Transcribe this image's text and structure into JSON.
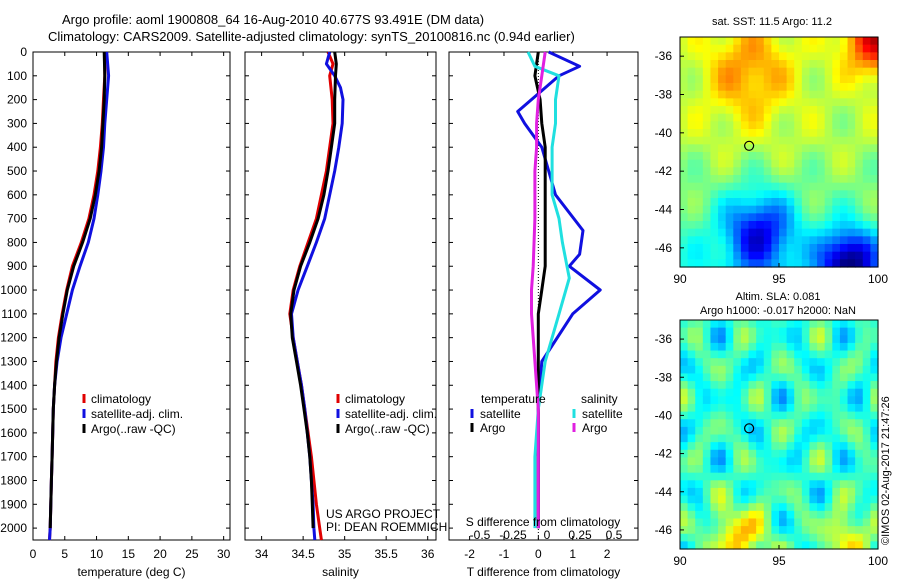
{
  "header": {
    "line1": "Argo profile: aoml 1900808_64 16-Aug-2010 40.677S 93.491E (DM data)",
    "line2": "Climatology: CARS2009. Satellite-adjusted climatology: synTS_20100816.nc (0.94d earlier)"
  },
  "credit": "©IMOS 02-Aug-2017 21:47:26",
  "colors": {
    "climatology": "#e00000",
    "satellite": "#1010e0",
    "argo": "#000000",
    "cyan": "#20e0e0",
    "magenta": "#e020e0"
  },
  "chart_data": [
    {
      "type": "line",
      "xlabel": "temperature (deg C)",
      "xlim": [
        0,
        31
      ],
      "xticks": [
        "0",
        "5",
        "10",
        "15",
        "20",
        "25",
        "30"
      ],
      "ylim": [
        2050,
        0
      ],
      "yticks": [
        "0",
        "100",
        "200",
        "300",
        "400",
        "500",
        "600",
        "700",
        "800",
        "900",
        "1000",
        "1100",
        "1200",
        "1300",
        "1400",
        "1500",
        "1600",
        "1700",
        "1800",
        "1900",
        "2000"
      ],
      "legend": [
        "climatology",
        "satellite-adj. clim.",
        "Argo(..raw -QC)"
      ],
      "series": [
        {
          "name": "climatology",
          "color": "#e00000",
          "points": [
            [
              11.3,
              0
            ],
            [
              11.3,
              100
            ],
            [
              11.1,
              200
            ],
            [
              10.9,
              300
            ],
            [
              10.6,
              400
            ],
            [
              10.2,
              500
            ],
            [
              9.6,
              600
            ],
            [
              8.8,
              700
            ],
            [
              7.6,
              800
            ],
            [
              6.2,
              900
            ],
            [
              5.3,
              1000
            ],
            [
              4.6,
              1100
            ],
            [
              4.0,
              1200
            ],
            [
              3.6,
              1300
            ],
            [
              3.4,
              1400
            ],
            [
              3.2,
              1500
            ],
            [
              3.1,
              1600
            ],
            [
              3.0,
              1700
            ],
            [
              2.9,
              1800
            ],
            [
              2.8,
              1900
            ],
            [
              2.7,
              2000
            ],
            [
              2.6,
              2050
            ]
          ]
        },
        {
          "name": "satellite-adj. clim.",
          "color": "#1010e0",
          "points": [
            [
              11.6,
              0
            ],
            [
              11.9,
              100
            ],
            [
              11.6,
              200
            ],
            [
              11.3,
              300
            ],
            [
              11.1,
              400
            ],
            [
              10.7,
              500
            ],
            [
              10.2,
              600
            ],
            [
              9.6,
              700
            ],
            [
              8.7,
              800
            ],
            [
              7.4,
              900
            ],
            [
              6.2,
              1000
            ],
            [
              5.3,
              1100
            ],
            [
              4.4,
              1200
            ],
            [
              3.8,
              1300
            ],
            [
              3.4,
              1400
            ],
            [
              3.2,
              1500
            ],
            [
              3.1,
              1600
            ],
            [
              3.0,
              1700
            ],
            [
              2.9,
              1800
            ],
            [
              2.8,
              1900
            ],
            [
              2.7,
              2000
            ],
            [
              2.6,
              2050
            ]
          ]
        },
        {
          "name": "Argo(..raw -QC)",
          "color": "#000000",
          "points": [
            [
              11.2,
              0
            ],
            [
              11.3,
              100
            ],
            [
              11.2,
              200
            ],
            [
              11.0,
              300
            ],
            [
              10.8,
              400
            ],
            [
              10.4,
              500
            ],
            [
              9.8,
              600
            ],
            [
              9.0,
              700
            ],
            [
              7.8,
              800
            ],
            [
              6.4,
              900
            ],
            [
              5.4,
              1000
            ],
            [
              4.7,
              1100
            ],
            [
              4.1,
              1200
            ],
            [
              3.7,
              1300
            ],
            [
              3.4,
              1400
            ],
            [
              3.2,
              1500
            ],
            [
              3.1,
              1600
            ],
            [
              3.0,
              1700
            ],
            [
              2.9,
              1800
            ],
            [
              2.8,
              1900
            ],
            [
              2.7,
              2000
            ]
          ]
        }
      ]
    },
    {
      "type": "line",
      "xlabel": "salinity",
      "xlim": [
        33.8,
        36.1
      ],
      "xticks": [
        "34",
        "34.5",
        "35",
        "35.5",
        "36"
      ],
      "ylim": [
        2050,
        0
      ],
      "legend": [
        "climatology",
        "satellite-adj. clim.",
        "Argo(..raw -QC)"
      ],
      "annotation": [
        "US ARGO PROJECT",
        "PI: DEAN ROEMMICH"
      ],
      "series": [
        {
          "name": "climatology",
          "color": "#e00000",
          "points": [
            [
              34.8,
              0
            ],
            [
              34.86,
              50
            ],
            [
              34.82,
              100
            ],
            [
              34.85,
              200
            ],
            [
              34.86,
              300
            ],
            [
              34.82,
              400
            ],
            [
              34.78,
              500
            ],
            [
              34.72,
              600
            ],
            [
              34.66,
              700
            ],
            [
              34.56,
              800
            ],
            [
              34.46,
              900
            ],
            [
              34.38,
              1000
            ],
            [
              34.34,
              1100
            ],
            [
              34.38,
              1200
            ],
            [
              34.43,
              1300
            ],
            [
              34.48,
              1400
            ],
            [
              34.52,
              1500
            ],
            [
              34.56,
              1600
            ],
            [
              34.6,
              1700
            ],
            [
              34.63,
              1800
            ],
            [
              34.66,
              1900
            ],
            [
              34.7,
              2000
            ],
            [
              34.72,
              2050
            ]
          ]
        },
        {
          "name": "satellite-adj. clim.",
          "color": "#1010e0",
          "points": [
            [
              34.82,
              0
            ],
            [
              34.78,
              50
            ],
            [
              34.88,
              100
            ],
            [
              34.95,
              150
            ],
            [
              34.98,
              200
            ],
            [
              34.97,
              300
            ],
            [
              34.93,
              400
            ],
            [
              34.88,
              500
            ],
            [
              34.82,
              600
            ],
            [
              34.76,
              700
            ],
            [
              34.66,
              800
            ],
            [
              34.55,
              900
            ],
            [
              34.44,
              1000
            ],
            [
              34.36,
              1100
            ],
            [
              34.38,
              1200
            ],
            [
              34.43,
              1300
            ],
            [
              34.48,
              1400
            ],
            [
              34.52,
              1500
            ],
            [
              34.55,
              1600
            ],
            [
              34.58,
              1700
            ],
            [
              34.6,
              1800
            ],
            [
              34.62,
              1900
            ],
            [
              34.63,
              2000
            ],
            [
              34.64,
              2050
            ]
          ]
        },
        {
          "name": "Argo(..raw -QC)",
          "color": "#000000",
          "points": [
            [
              34.88,
              0
            ],
            [
              34.9,
              50
            ],
            [
              34.89,
              100
            ],
            [
              34.88,
              200
            ],
            [
              34.88,
              300
            ],
            [
              34.84,
              400
            ],
            [
              34.8,
              500
            ],
            [
              34.75,
              600
            ],
            [
              34.68,
              700
            ],
            [
              34.58,
              800
            ],
            [
              34.47,
              900
            ],
            [
              34.39,
              1000
            ],
            [
              34.35,
              1100
            ],
            [
              34.37,
              1200
            ],
            [
              34.42,
              1300
            ],
            [
              34.47,
              1400
            ],
            [
              34.51,
              1500
            ],
            [
              34.55,
              1600
            ],
            [
              34.58,
              1700
            ],
            [
              34.6,
              1800
            ],
            [
              34.61,
              1900
            ],
            [
              34.62,
              2000
            ]
          ]
        }
      ]
    },
    {
      "type": "line",
      "xlabel": "T difference from climatology",
      "xlabel_top": "S difference from climatology",
      "xlim": [
        -2.6,
        2.9
      ],
      "xticks": [
        "-2",
        "-1",
        "0",
        "1",
        "2"
      ],
      "xticks_top": [
        "-0.5",
        "-0.25",
        "0",
        "0.25",
        "0.5"
      ],
      "ylim": [
        2050,
        0
      ],
      "legend_headers": [
        "temperature",
        "salinity"
      ],
      "legend": [
        "satellite",
        "Argo",
        "satellite",
        "Argo"
      ],
      "series": [
        {
          "name": "satellite",
          "color": "#1010e0",
          "points": [
            [
              0.3,
              0
            ],
            [
              1.2,
              60
            ],
            [
              0.6,
              100
            ],
            [
              0.2,
              150
            ],
            [
              -0.6,
              250
            ],
            [
              -0.4,
              300
            ],
            [
              0.1,
              400
            ],
            [
              0.3,
              500
            ],
            [
              0.5,
              600
            ],
            [
              1.3,
              750
            ],
            [
              1.2,
              850
            ],
            [
              0.9,
              900
            ],
            [
              1.8,
              1000
            ],
            [
              1.0,
              1100
            ],
            [
              0.1,
              1300
            ],
            [
              0.0,
              1500
            ],
            [
              0.0,
              1700
            ],
            [
              0.0,
              2000
            ]
          ]
        },
        {
          "name": "Argo",
          "color": "#000000",
          "points": [
            [
              0.0,
              0
            ],
            [
              -0.1,
              100
            ],
            [
              0.05,
              200
            ],
            [
              0.1,
              300
            ],
            [
              0.2,
              400
            ],
            [
              0.2,
              500
            ],
            [
              0.2,
              600
            ],
            [
              0.2,
              700
            ],
            [
              0.2,
              800
            ],
            [
              0.2,
              900
            ],
            [
              0.1,
              1000
            ],
            [
              0.0,
              1100
            ],
            [
              0.0,
              1300
            ],
            [
              0.0,
              1500
            ],
            [
              0.0,
              1800
            ],
            [
              0.0,
              2000
            ]
          ]
        },
        {
          "name": "satellite",
          "color": "#20e0e0",
          "points": [
            [
              -0.3,
              0
            ],
            [
              -0.1,
              60
            ],
            [
              0.6,
              100
            ],
            [
              0.5,
              200
            ],
            [
              0.5,
              300
            ],
            [
              0.4,
              400
            ],
            [
              0.4,
              500
            ],
            [
              0.4,
              600
            ],
            [
              0.6,
              700
            ],
            [
              0.7,
              800
            ],
            [
              0.9,
              950
            ],
            [
              0.6,
              1100
            ],
            [
              0.2,
              1300
            ],
            [
              0.0,
              1500
            ],
            [
              -0.1,
              1700
            ],
            [
              -0.1,
              2000
            ]
          ]
        },
        {
          "name": "Argo",
          "color": "#e020e0",
          "points": [
            [
              0.2,
              0
            ],
            [
              0.1,
              100
            ],
            [
              0.0,
              200
            ],
            [
              -0.05,
              300
            ],
            [
              -0.05,
              400
            ],
            [
              -0.1,
              500
            ],
            [
              -0.1,
              700
            ],
            [
              -0.15,
              900
            ],
            [
              -0.2,
              1000
            ],
            [
              -0.2,
              1100
            ],
            [
              -0.1,
              1300
            ],
            [
              0.0,
              1500
            ],
            [
              0.0,
              1700
            ],
            [
              0.0,
              2000
            ]
          ]
        }
      ]
    },
    {
      "type": "heatmap",
      "title": "sat. SST: 11.5  Argo: 11.2",
      "xlim": [
        90,
        100
      ],
      "ylim": [
        -47,
        -35
      ],
      "xticks": [
        "90",
        "95",
        "100"
      ],
      "yticks": [
        "-36",
        "-38",
        "-40",
        "-42",
        "-44",
        "-46"
      ],
      "marker": [
        93.491,
        -40.677
      ],
      "data_extent": [
        90,
        100
      ]
    },
    {
      "type": "heatmap",
      "title": [
        "Altim. SLA: 0.081",
        "Argo h1000: -0.017 h2000: NaN"
      ],
      "xlim": [
        90,
        100
      ],
      "ylim": [
        -47,
        -35
      ],
      "xticks": [
        "90",
        "95",
        "100"
      ],
      "yticks": [
        "-36",
        "-38",
        "-40",
        "-42",
        "-44",
        "-46"
      ],
      "marker": [
        93.491,
        -40.677
      ],
      "data_extent": [
        90,
        100
      ]
    }
  ]
}
